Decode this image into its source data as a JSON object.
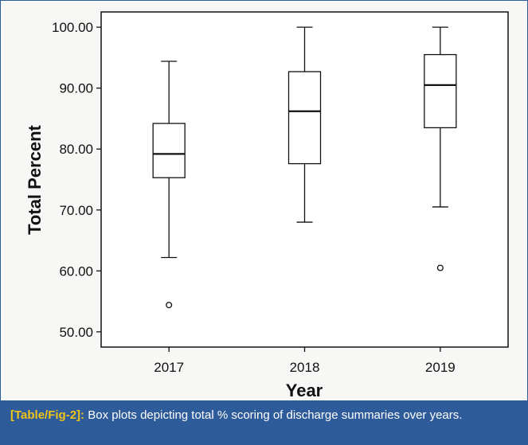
{
  "chart_data": {
    "type": "boxplot",
    "categories": [
      "2017",
      "2018",
      "2019"
    ],
    "series": [
      {
        "name": "2017",
        "whisker_low": 62.2,
        "q1": 75.3,
        "median": 79.2,
        "q3": 84.2,
        "whisker_high": 94.4,
        "outliers": [
          54.4
        ]
      },
      {
        "name": "2018",
        "whisker_low": 68.0,
        "q1": 77.6,
        "median": 86.2,
        "q3": 92.7,
        "whisker_high": 100.0,
        "outliers": []
      },
      {
        "name": "2019",
        "whisker_low": 70.5,
        "q1": 83.5,
        "median": 90.5,
        "q3": 95.5,
        "whisker_high": 100.0,
        "outliers": [
          60.5
        ]
      }
    ],
    "xlabel": "Year",
    "ylabel": "Total Percent",
    "ylim": [
      47.5,
      102.5
    ],
    "yticks": [
      50,
      60,
      70,
      80,
      90,
      100
    ],
    "ytick_labels": [
      "50.00",
      "60.00",
      "70.00",
      "80.00",
      "90.00",
      "100.00"
    ],
    "grid": false
  },
  "caption": {
    "label": "[Table/Fig-2]:",
    "text": "Box plots depicting total % scoring of discharge summaries over years."
  },
  "colors": {
    "frame": "#2e5b9a",
    "caption_bg": "#2e5b9a",
    "caption_label": "#f0c419",
    "plot_bg": "#ffffff",
    "ink": "#111111"
  }
}
